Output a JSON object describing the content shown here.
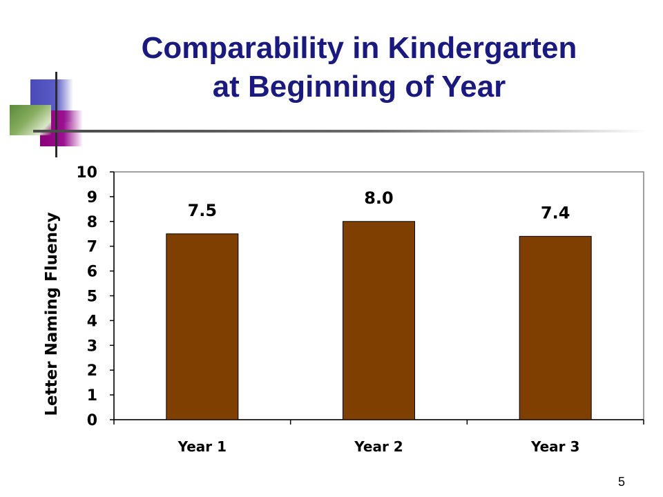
{
  "slide": {
    "title_line1": "Comparability in Kindergarten",
    "title_line2": "at Beginning of Year",
    "page_number": "5",
    "title_color": "#1a1a7e"
  },
  "chart_data": {
    "type": "bar",
    "categories": [
      "Year 1",
      "Year 2",
      "Year 3"
    ],
    "values": [
      7.5,
      8.0,
      7.4
    ],
    "data_labels": [
      "7.5",
      "8.0",
      "7.4"
    ],
    "ylabel": "Letter Naming Fluency",
    "xlabel": "",
    "ylim": [
      0,
      10
    ],
    "yticks": [
      0,
      1,
      2,
      3,
      4,
      5,
      6,
      7,
      8,
      9,
      10
    ],
    "grid": false,
    "legend": "none",
    "bar_color": "#7f3f00"
  }
}
